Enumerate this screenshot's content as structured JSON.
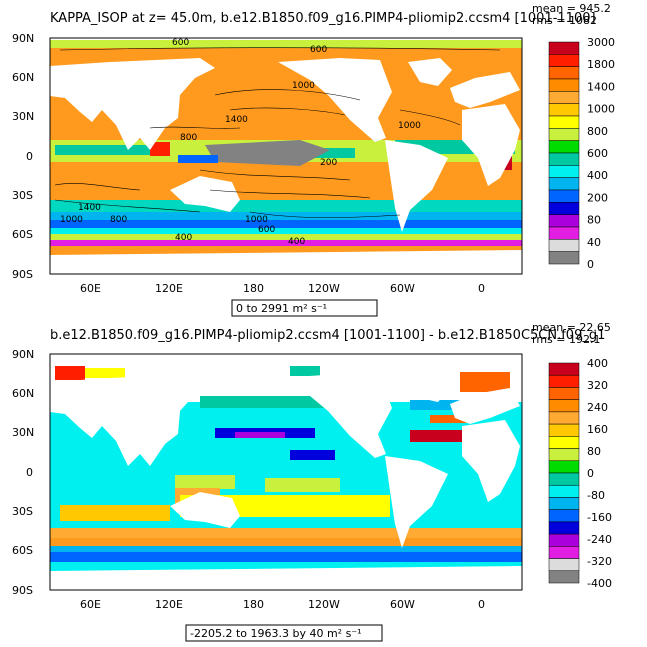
{
  "panels": [
    {
      "title": "KAPPA_ISOP at z=  45.0m, b.e12.B1850.f09_g16.PIMP4-pliomip2.ccsm4 [1001-1100]",
      "mean_label": "mean = 945.2",
      "rms_label": "rms = 1082",
      "range_label": "0 to 2991 m² s⁻¹",
      "colorbar": {
        "labels": [
          "3000",
          "1800",
          "1400",
          "1000",
          "800",
          "600",
          "400",
          "200",
          "80",
          "40",
          "0"
        ],
        "colors": [
          "#c8001e",
          "#ff1e00",
          "#ff6400",
          "#ff8c00",
          "#ffaa32",
          "#ffc800",
          "#ffff00",
          "#c8f03c",
          "#00dc00",
          "#00c8a0",
          "#00f0f0",
          "#00b4f0",
          "#0064ff",
          "#0000dc",
          "#aa00dc",
          "#e11ee1",
          "#dcdcdc",
          "#828282"
        ]
      },
      "contour_labels": [
        "600",
        "600",
        "1400",
        "1000",
        "1000",
        "800",
        "200",
        "1400",
        "800",
        "400",
        "1000",
        "600",
        "400",
        "1000"
      ]
    },
    {
      "title": "b.e12.B1850.f09_g16.PIMP4-pliomip2.ccsm4 [1001-1100] - b.e12.B1850C5CN.f09_g1",
      "mean_label": "mean = 22.65",
      "rms_label": "rms = 192.1",
      "range_label": "-2205.2 to 1963.3 by 40 m² s⁻¹",
      "colorbar": {
        "labels": [
          "400",
          "320",
          "240",
          "160",
          "80",
          "0",
          "-80",
          "-160",
          "-240",
          "-320",
          "-400"
        ],
        "colors": [
          "#c8001e",
          "#ff1e00",
          "#ff6400",
          "#ff8c00",
          "#ffaa32",
          "#ffc800",
          "#ffff00",
          "#c8f03c",
          "#00dc00",
          "#00c8a0",
          "#00f0f0",
          "#00b4f0",
          "#0064ff",
          "#0000dc",
          "#aa00dc",
          "#e11ee1",
          "#dcdcdc",
          "#828282"
        ]
      }
    }
  ],
  "map": {
    "lat_ticks": [
      "90N",
      "60N",
      "30N",
      "0",
      "30S",
      "60S",
      "90S"
    ],
    "lon_ticks": [
      "60E",
      "120E",
      "180",
      "120W",
      "60W",
      "0"
    ]
  }
}
